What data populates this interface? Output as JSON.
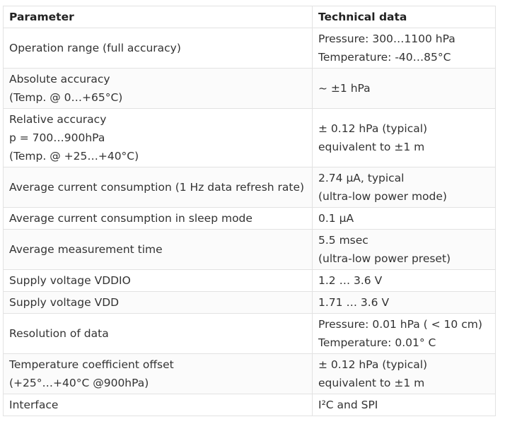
{
  "table": {
    "headers": [
      "Parameter",
      "Technical data"
    ],
    "rows": [
      {
        "param": [
          "Operation range (full accuracy)"
        ],
        "data": [
          "Pressure: 300…1100 hPa",
          "Temperature: -40…85°C"
        ]
      },
      {
        "param": [
          "Absolute accuracy",
          "(Temp. @ 0…+65°C)"
        ],
        "data": [
          "~ ±1 hPa"
        ]
      },
      {
        "param": [
          "Relative accuracy",
          "p = 700…900hPa",
          "(Temp. @ +25…+40°C)"
        ],
        "data": [
          "± 0.12 hPa (typical)",
          "equivalent to ±1 m"
        ]
      },
      {
        "param": [
          "Average current consumption (1 Hz data refresh rate)"
        ],
        "data": [
          "2.74 µA, typical",
          "(ultra-low power mode)"
        ]
      },
      {
        "param": [
          "Average current consumption in sleep mode"
        ],
        "data": [
          "0.1 µA"
        ]
      },
      {
        "param": [
          "Average measurement time"
        ],
        "data": [
          "5.5 msec",
          "(ultra-low power preset)"
        ]
      },
      {
        "param": [
          "Supply voltage VDDIO"
        ],
        "data": [
          "1.2 … 3.6 V"
        ]
      },
      {
        "param": [
          "Supply voltage VDD"
        ],
        "data": [
          "1.71 … 3.6 V"
        ]
      },
      {
        "param": [
          "Resolution of data"
        ],
        "data": [
          "Pressure: 0.01 hPa ( < 10 cm)",
          "Temperature: 0.01° C"
        ]
      },
      {
        "param": [
          "Temperature coefficient offset",
          "(+25°…+40°C @900hPa)"
        ],
        "data": [
          "± 0.12 hPa (typical)",
          "equivalent to ±1 m"
        ]
      },
      {
        "param": [
          "Interface"
        ],
        "data": [
          "I²C and SPI"
        ]
      }
    ]
  }
}
